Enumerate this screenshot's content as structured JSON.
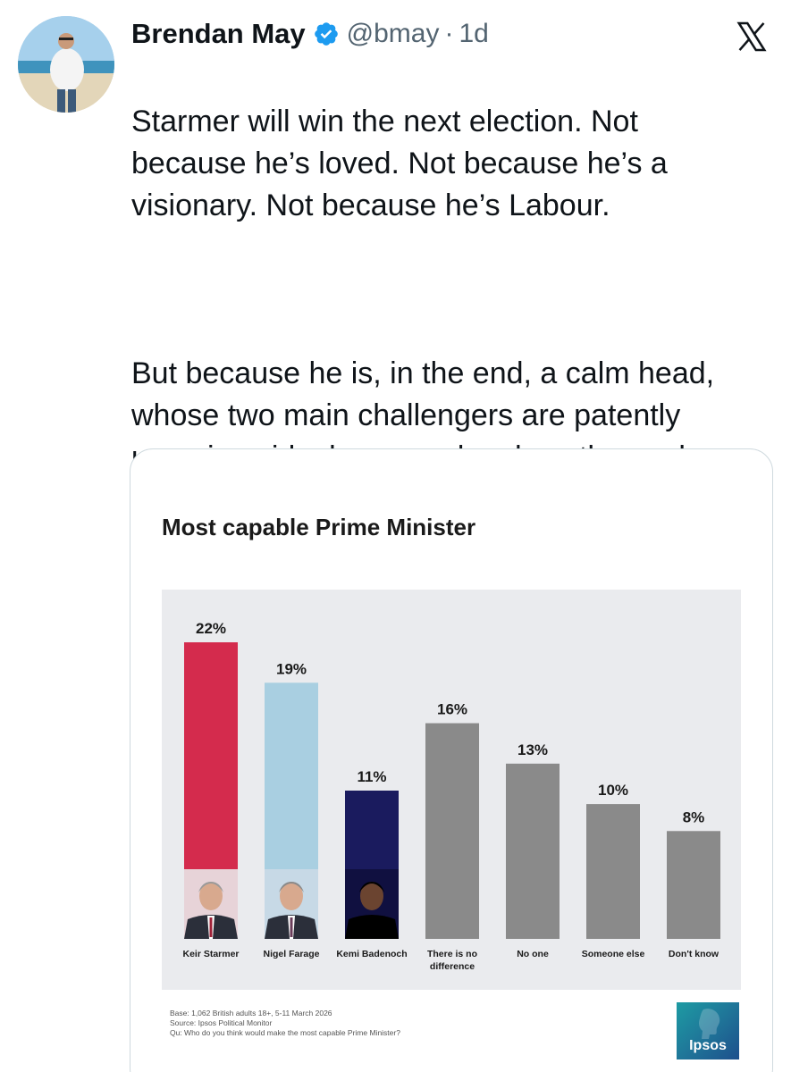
{
  "tweet": {
    "author_name": "Brendan May",
    "handle": "@bmay",
    "separator": "·",
    "timestamp": "1d",
    "text_para_1": "Starmer will win the next election. Not because he’s loved. Not because he’s a visionary. Not because he’s Labour.",
    "text_para_2": "But because he is, in the end, a calm head, whose two main challengers are patently unserious ideologues, who show themselves daily to be unsuitable for the role."
  },
  "icons": {
    "verified": "verified-badge-icon",
    "platform_logo": "x-logo-icon"
  },
  "colors": {
    "verified_blue": "#1d9bf0",
    "text_primary": "#0f1419",
    "text_secondary": "#536471",
    "starmer_red": "#d42b4d",
    "farage_lightblue": "#a9cfe1",
    "badenoch_navy": "#1a1b5e",
    "grey_bar": "#8a8a8a",
    "chart_bg": "#eaebee"
  },
  "chart_data": {
    "type": "bar",
    "title": "Most capable Prime Minister",
    "categories": [
      "Keir Starmer",
      "Nigel Farage",
      "Kemi Badenoch",
      "There is no difference",
      "No one",
      "Someone else",
      "Don't know"
    ],
    "category_lines": [
      [
        "Keir Starmer"
      ],
      [
        "Nigel Farage"
      ],
      [
        "Kemi Badenoch"
      ],
      [
        "There is no",
        "difference"
      ],
      [
        "No one"
      ],
      [
        "Someone else"
      ],
      [
        "Don't know"
      ]
    ],
    "values": [
      22,
      19,
      11,
      16,
      13,
      10,
      8
    ],
    "value_labels": [
      "22%",
      "19%",
      "11%",
      "16%",
      "13%",
      "10%",
      "8%"
    ],
    "bar_colors": [
      "#d42b4d",
      "#a9cfe1",
      "#1a1b5e",
      "#8a8a8a",
      "#8a8a8a",
      "#8a8a8a",
      "#8a8a8a"
    ],
    "has_portrait": [
      true,
      true,
      true,
      false,
      false,
      false,
      false
    ],
    "xlabel": "",
    "ylabel": "",
    "ylim": [
      0,
      22
    ],
    "unit": "%"
  },
  "footnotes": {
    "base": "Base: 1,062 British adults 18+, 5-11 March 2026",
    "source": "Source: Ipsos Political Monitor",
    "question": "Qu: Who do you think would make the most capable Prime Minister?"
  },
  "brand": {
    "logo_text": "Ipsos"
  }
}
